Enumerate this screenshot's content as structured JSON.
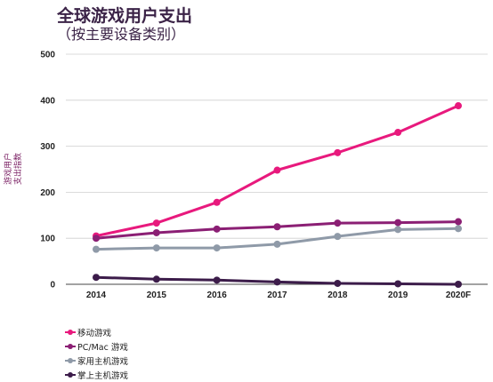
{
  "title": "全球游戏用户支出",
  "subtitle": "（按主要设备类别）",
  "chart_data": {
    "type": "line",
    "categories": [
      "2014",
      "2015",
      "2016",
      "2017",
      "2018",
      "2019",
      "2020F"
    ],
    "ylabel_lines": [
      "游戏用户",
      "支出指数"
    ],
    "ylim": [
      0,
      500
    ],
    "yticks": [
      0,
      100,
      200,
      300,
      400,
      500
    ],
    "grid": true,
    "legend_position": "bottom-left",
    "series": [
      {
        "name": "移动游戏",
        "color": "#e8197d",
        "values": [
          105,
          133,
          178,
          248,
          286,
          330,
          388
        ]
      },
      {
        "name": "PC/Mac 游戏",
        "color": "#8b1f74",
        "values": [
          100,
          112,
          120,
          125,
          133,
          134,
          136
        ]
      },
      {
        "name": "家用主机游戏",
        "color": "#8f9aa8",
        "values": [
          76,
          79,
          79,
          87,
          104,
          119,
          121
        ]
      },
      {
        "name": "掌上主机游戏",
        "color": "#3c1c4a",
        "values": [
          15,
          11,
          9,
          5,
          2,
          1,
          0
        ]
      }
    ]
  }
}
